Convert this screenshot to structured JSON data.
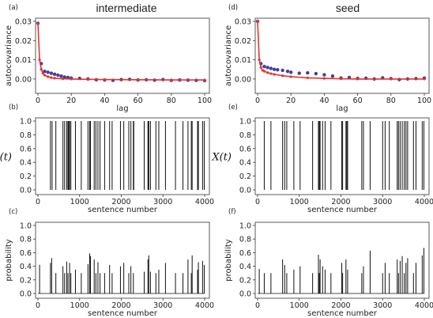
{
  "titles": {
    "left": "intermediate",
    "right": "seed"
  },
  "chart_data": [
    {
      "panel": "(a)",
      "type": "scatter",
      "xlabel": "lag",
      "ylabel": "autocovariance",
      "xlim": [
        0,
        100
      ],
      "ylim": [
        -0.005,
        0.03
      ],
      "xticks": [
        "0",
        "20",
        "40",
        "60",
        "80",
        "100"
      ],
      "yticks": [
        "0.00",
        "0.01",
        "0.02",
        "0.03"
      ],
      "series": [
        {
          "color": "#3f3f9a",
          "kind": "points",
          "x": [
            0,
            2,
            4,
            6,
            8,
            10,
            12,
            14,
            16,
            18,
            20,
            25,
            30,
            35,
            40,
            45,
            50,
            55,
            60,
            65,
            70,
            75,
            80,
            85,
            90,
            95,
            100
          ],
          "y": [
            0.029,
            0.008,
            0.004,
            0.0035,
            0.003,
            0.0025,
            0.002,
            0.0015,
            0.001,
            0.0008,
            0.0005,
            0.0003,
            0.0,
            -0.0004,
            -0.0005,
            -0.0007,
            -0.0003,
            -0.0002,
            -0.0005,
            -0.0004,
            -0.0006,
            -0.0003,
            -0.0007,
            -0.0005,
            -0.0006,
            -0.0007,
            -0.0008
          ]
        },
        {
          "color": "#e8332a",
          "kind": "line",
          "x": [
            0,
            1,
            2,
            3,
            4,
            6,
            8,
            10,
            15,
            20,
            30,
            40,
            60,
            80,
            100
          ],
          "y": [
            0.029,
            0.01,
            0.005,
            0.003,
            0.002,
            0.0012,
            0.0007,
            0.0004,
            0.0001,
            0.0,
            -0.0002,
            -0.0003,
            -0.0004,
            -0.0005,
            -0.0005
          ]
        }
      ]
    },
    {
      "panel": "(d)",
      "type": "scatter",
      "xlabel": "lag",
      "ylabel": "autocovariance",
      "xlim": [
        0,
        100
      ],
      "ylim": [
        -0.005,
        0.03
      ],
      "xticks": [
        "0",
        "20",
        "40",
        "60",
        "80",
        "100"
      ],
      "yticks": [
        "0.00",
        "0.01",
        "0.02",
        "0.03"
      ],
      "series": [
        {
          "color": "#3f3f9a",
          "kind": "points",
          "x": [
            0,
            2,
            4,
            6,
            8,
            10,
            12,
            15,
            18,
            20,
            25,
            30,
            35,
            40,
            45,
            50,
            55,
            60,
            65,
            70,
            75,
            80,
            85,
            90,
            95,
            100
          ],
          "y": [
            0.03,
            0.008,
            0.0065,
            0.006,
            0.0055,
            0.005,
            0.0048,
            0.0045,
            0.004,
            0.0035,
            0.003,
            0.0032,
            0.0028,
            0.0022,
            0.0015,
            0.0005,
            0.0008,
            0.0003,
            0.0004,
            0.0,
            0.0006,
            0.0002,
            -0.0003,
            0.0,
            0.0002,
            0.0005
          ]
        },
        {
          "color": "#e8332a",
          "kind": "line",
          "x": [
            0,
            1,
            2,
            3,
            4,
            6,
            8,
            10,
            15,
            20,
            30,
            40,
            50,
            60,
            80,
            100
          ],
          "y": [
            0.03,
            0.01,
            0.006,
            0.0045,
            0.004,
            0.0033,
            0.0028,
            0.0024,
            0.0017,
            0.0012,
            0.0006,
            0.0003,
            0.0001,
            0.0,
            0.0,
            0.0
          ]
        }
      ]
    },
    {
      "panel": "(b)",
      "type": "line",
      "xlabel": "sentence number",
      "ylabel": "X(t)",
      "xlim": [
        0,
        4000
      ],
      "ylim": [
        0,
        1
      ],
      "xticks": [
        "0",
        "1000",
        "2000",
        "3000",
        "4000"
      ],
      "yticks": [
        "0.0",
        "0.2",
        "0.4",
        "0.6",
        "0.8",
        "1.0"
      ],
      "spikes": [
        300,
        340,
        430,
        600,
        640,
        690,
        720,
        740,
        760,
        790,
        900,
        1040,
        1200,
        1240,
        1260,
        1350,
        1390,
        1440,
        1490,
        1600,
        1720,
        1780,
        1980,
        2060,
        2180,
        2230,
        2290,
        2300,
        2550,
        2640,
        2650,
        2660,
        2700,
        2830,
        2900,
        3060,
        3300,
        3480,
        3600,
        3680,
        3700,
        3830,
        3850,
        3950,
        3990
      ],
      "spike_value": 1.0
    },
    {
      "panel": "(e)",
      "type": "line",
      "xlabel": "sentence number",
      "ylabel": "X(t)",
      "xlim": [
        0,
        4000
      ],
      "ylim": [
        0,
        1
      ],
      "xticks": [
        "0",
        "1000",
        "2000",
        "3000",
        "4000"
      ],
      "yticks": [
        "0.0",
        "0.2",
        "0.4",
        "0.6",
        "0.8",
        "1.0"
      ],
      "spikes": [
        160,
        320,
        600,
        650,
        700,
        870,
        1020,
        1320,
        1460,
        1480,
        1500,
        1560,
        1620,
        1760,
        2020,
        2040,
        2120,
        2140,
        2160,
        2500,
        2540,
        2700,
        3000,
        3060,
        3160,
        3350,
        3380,
        3420,
        3470,
        3520,
        3560,
        3600,
        3740,
        3800,
        3950,
        3990
      ],
      "spike_value": 1.0
    },
    {
      "panel": "(c)",
      "type": "line",
      "xlabel": "sentence number",
      "ylabel": "probability",
      "xlim": [
        0,
        4000
      ],
      "ylim": [
        0,
        1
      ],
      "xticks": [
        "0",
        "1000",
        "2000",
        "3000",
        "4000"
      ],
      "yticks": [
        "0.0",
        "0.2",
        "0.4",
        "0.6",
        "0.8",
        "1.0"
      ],
      "spikes_x": [
        40,
        300,
        330,
        430,
        600,
        640,
        690,
        720,
        760,
        790,
        900,
        1040,
        1200,
        1240,
        1260,
        1350,
        1390,
        1440,
        1490,
        1600,
        1720,
        1780,
        1980,
        2060,
        2180,
        2230,
        2290,
        2550,
        2640,
        2660,
        2700,
        2830,
        2900,
        3060,
        3300,
        3480,
        3600,
        3680,
        3700,
        3830,
        3850,
        3950,
        3990
      ],
      "spikes_y": [
        0.42,
        0.45,
        0.52,
        0.3,
        0.4,
        0.3,
        0.47,
        0.3,
        0.45,
        0.3,
        0.35,
        0.3,
        0.43,
        0.59,
        0.55,
        0.5,
        0.3,
        0.46,
        0.3,
        0.3,
        0.42,
        0.3,
        0.4,
        0.45,
        0.3,
        0.4,
        0.3,
        0.32,
        0.5,
        0.56,
        0.32,
        0.3,
        0.35,
        0.45,
        0.3,
        0.3,
        0.5,
        0.3,
        0.56,
        0.35,
        0.46,
        0.48,
        0.42
      ]
    },
    {
      "panel": "(f)",
      "type": "line",
      "xlabel": "sentence number",
      "ylabel": "probability",
      "xlim": [
        0,
        4000
      ],
      "ylim": [
        0,
        1
      ],
      "xticks": [
        "0",
        "1000",
        "2000",
        "3000",
        "4000"
      ],
      "yticks": [
        "0.0",
        "0.2",
        "0.4",
        "0.6",
        "0.8",
        "1.0"
      ],
      "spikes_x": [
        40,
        160,
        320,
        600,
        650,
        700,
        870,
        1020,
        1320,
        1460,
        1480,
        1500,
        1560,
        1620,
        1760,
        2020,
        2040,
        2120,
        2160,
        2500,
        2540,
        2700,
        3000,
        3060,
        3160,
        3350,
        3380,
        3420,
        3470,
        3520,
        3560,
        3600,
        3740,
        3800,
        3950,
        3990
      ],
      "spikes_y": [
        0.36,
        0.3,
        0.3,
        0.5,
        0.42,
        0.3,
        0.35,
        0.4,
        0.3,
        0.57,
        0.3,
        0.5,
        0.4,
        0.35,
        0.3,
        0.45,
        0.3,
        0.5,
        0.35,
        0.3,
        0.4,
        0.63,
        0.3,
        0.45,
        0.3,
        0.5,
        0.3,
        0.48,
        0.55,
        0.3,
        0.45,
        0.52,
        0.3,
        0.45,
        0.56,
        0.67
      ]
    }
  ]
}
